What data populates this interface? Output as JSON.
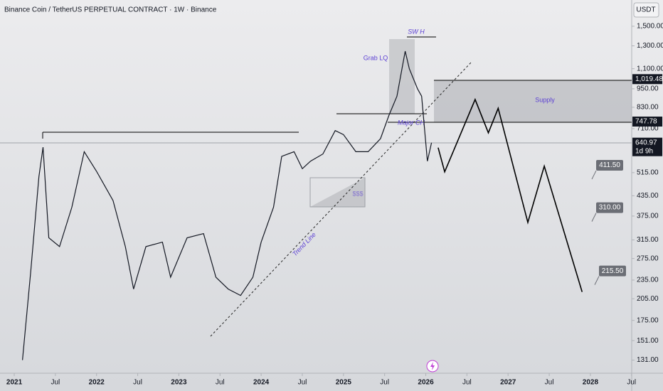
{
  "chart_data": {
    "type": "line",
    "title": "Binance Coin / TetherUS PERPETUAL CONTRACT · 1W · Binance",
    "currency": "USDT",
    "log_scale": true,
    "xlim": [
      2020.827,
      2028.502
    ],
    "xticks": [
      2021,
      {
        "value": 2021.5,
        "label": "Jul"
      },
      2022,
      {
        "value": 2022.5,
        "label": "Jul"
      },
      2023,
      {
        "value": 2023.5,
        "label": "Jul"
      },
      2024,
      {
        "value": 2024.5,
        "label": "Jul"
      },
      2025,
      {
        "value": 2025.5,
        "label": "Jul"
      },
      2026,
      {
        "value": 2026.5,
        "label": "Jul"
      },
      2027,
      {
        "value": 2027.5,
        "label": "Jul"
      },
      2028,
      {
        "value": 2028.5,
        "label": "Jul"
      }
    ],
    "ylim": [
      119,
      1817
    ],
    "yticks": [
      {
        "value": 1500,
        "label": "1,500.00"
      },
      {
        "value": 1300,
        "label": "1,300.00"
      },
      {
        "value": 1100,
        "label": "1,100.00"
      },
      {
        "value": 950,
        "label": "950.00"
      },
      {
        "value": 830,
        "label": "830.00"
      },
      {
        "value": 710,
        "label": "710.00"
      },
      {
        "value": 515,
        "label": "515.00"
      },
      {
        "value": 435,
        "label": "435.00"
      },
      {
        "value": 375,
        "label": "375.00"
      },
      {
        "value": 315,
        "label": "315.00"
      },
      {
        "value": 275,
        "label": "275.00"
      },
      {
        "value": 235,
        "label": "235.00"
      },
      {
        "value": 205,
        "label": "205.00"
      },
      {
        "value": 175,
        "label": "175.00"
      },
      {
        "value": 151,
        "label": "151.00"
      },
      {
        "value": 131,
        "label": "131.00"
      }
    ],
    "series": [
      {
        "color": "#131722",
        "x": [
          2021.1,
          2021.2,
          2021.3,
          2021.35,
          2021.42,
          2021.55,
          2021.7,
          2021.85,
          2022.0,
          2022.2,
          2022.35,
          2022.45,
          2022.6,
          2022.8,
          2022.9,
          2023.1,
          2023.3,
          2023.45,
          2023.6,
          2023.75,
          2023.9,
          2024.0,
          2024.15,
          2024.25,
          2024.4,
          2024.5,
          2024.6,
          2024.75,
          2024.9,
          2025.0,
          2025.15,
          2025.3,
          2025.45,
          2025.55,
          2025.65,
          2025.75,
          2025.8,
          2025.9,
          2025.95,
          2026.02,
          2026.07
        ],
        "values": [
          131,
          250,
          500,
          620,
          320,
          300,
          400,
          600,
          520,
          420,
          300,
          220,
          300,
          310,
          240,
          320,
          330,
          240,
          220,
          210,
          240,
          310,
          400,
          580,
          600,
          530,
          560,
          590,
          700,
          680,
          600,
          600,
          660,
          780,
          900,
          1250,
          1100,
          950,
          900,
          560,
          640.97
        ]
      },
      {
        "color": "#000000",
        "x": [
          2026.15,
          2026.23,
          2026.6,
          2026.76,
          2026.88,
          2027.24,
          2027.44,
          2027.9
        ],
        "values": [
          618,
          518,
          879,
          689,
          824,
          358,
          540,
          215.5
        ]
      }
    ],
    "price_labels": [
      {
        "value": 1019.48,
        "label": "1,019.48"
      },
      {
        "value": 747.78,
        "label": "747.78"
      },
      {
        "value": 640.97,
        "label": "640.97"
      }
    ],
    "countdown": "1d 9h",
    "targets": [
      {
        "value": 411.5,
        "label": "411.50"
      },
      {
        "value": 310,
        "label": "310.00"
      },
      {
        "value": 215.5,
        "label": "215.50"
      }
    ],
    "annotations": {
      "swing_high": "SW H",
      "grab": "Grab LQ",
      "choch": "Major CH",
      "supply": "Supply",
      "liquidity": "$$$",
      "trend": "Trend Line"
    }
  }
}
